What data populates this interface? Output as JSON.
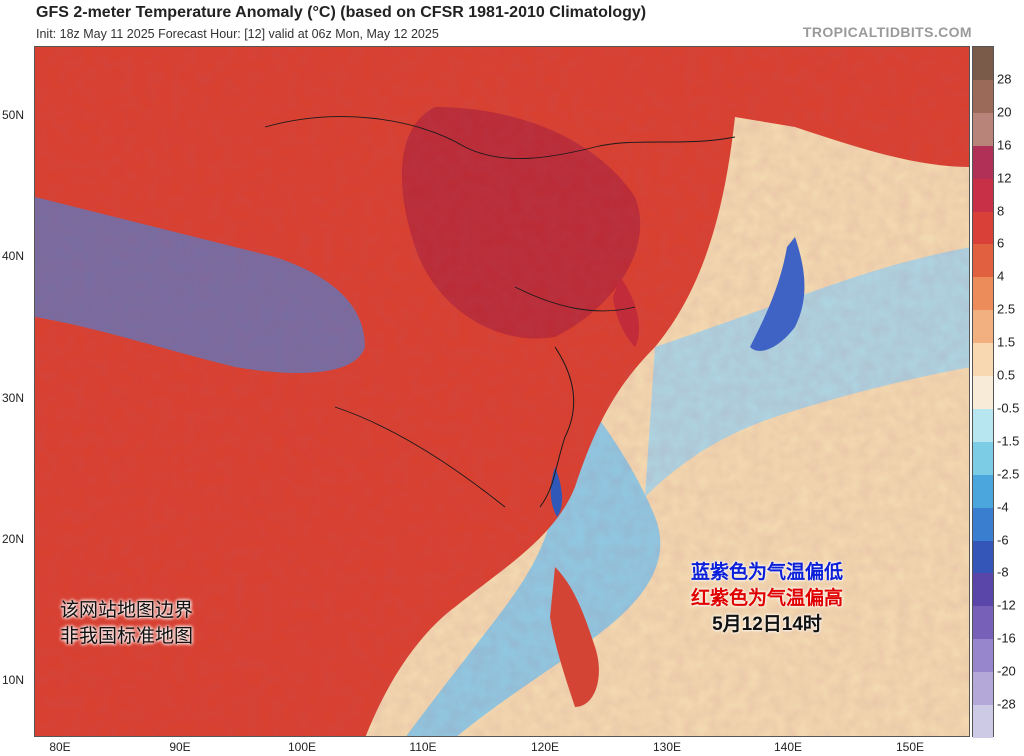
{
  "header": {
    "title": "GFS 2-meter Temperature Anomaly (°C) (based on CFSR 1981-2010 Climatology)",
    "subtitle": "Init: 18z May 11 2025   Forecast Hour: [12]   valid at 06z Mon, May 12 2025",
    "brand": "TROPICALTIDBITS.COM"
  },
  "map": {
    "lat_labels": [
      "50N",
      "40N",
      "30N",
      "20N",
      "10N"
    ],
    "lon_labels": [
      "80E",
      "90E",
      "100E",
      "110E",
      "120E",
      "130E",
      "140E",
      "150E"
    ],
    "colors": {
      "warm_strong": "#b0283a",
      "warm": "#d8402e",
      "warm_light": "#f0a878",
      "neutral": "#f5dcb5",
      "cool_light": "#a8d8ee",
      "cool": "#5a9ad6",
      "cool_strong": "#6a5ec0"
    }
  },
  "colorbar": {
    "labels": [
      "28",
      "20",
      "16",
      "12",
      "8",
      "6",
      "4",
      "2.5",
      "1.5",
      "0.5",
      "-0.5",
      "-1.5",
      "-2.5",
      "-4",
      "-6",
      "-8",
      "-12",
      "-16",
      "-20",
      "-28"
    ],
    "colors": [
      "#7a5a48",
      "#9c6a58",
      "#b8847a",
      "#b03058",
      "#c83048",
      "#d84038",
      "#e06040",
      "#ec8c5a",
      "#f2b080",
      "#f7d8b0",
      "#f8ecd8",
      "#b8e6f0",
      "#7ccce6",
      "#4aa6dc",
      "#3a7ed0",
      "#3456b8",
      "#5a46a8",
      "#7660b8",
      "#9886cc",
      "#b4a8d8",
      "#cccae4"
    ]
  },
  "annotations": {
    "disclaimer_line1": "该网站地图边界",
    "disclaimer_line2": "非我国标准地图",
    "legend_blue": "蓝紫色为气温偏低",
    "legend_red": "红紫色为气温偏高",
    "legend_time": "5月12日14时"
  }
}
